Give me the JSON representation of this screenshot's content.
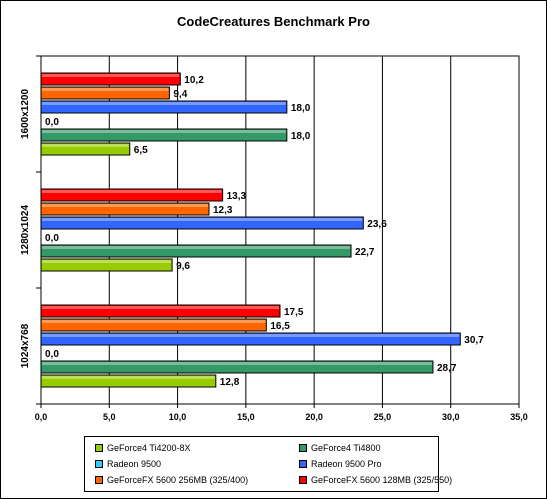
{
  "chart_data": {
    "type": "bar",
    "orientation": "horizontal",
    "title": "CodeCreatures Benchmark Pro",
    "categories": [
      "1600x1200",
      "1280x1024",
      "1024x768"
    ],
    "series": [
      {
        "name": "GeForce4 Ti4200-8X",
        "color": "#99cc00",
        "values": [
          6.5,
          9.6,
          12.8
        ],
        "labels": [
          "6,5",
          "9,6",
          "12,8"
        ]
      },
      {
        "name": "GeForce4 Ti4800",
        "color": "#339966",
        "values": [
          18.0,
          22.7,
          28.7
        ],
        "labels": [
          "18,0",
          "22,7",
          "28,7"
        ]
      },
      {
        "name": "Radeon 9500",
        "color": "#33ccff",
        "values": [
          0.0,
          0.0,
          0.0
        ],
        "labels": [
          "0,0",
          "0,0",
          "0,0"
        ]
      },
      {
        "name": "Radeon 9500 Pro",
        "color": "#3366ff",
        "values": [
          18.0,
          23.6,
          30.7
        ],
        "labels": [
          "18,0",
          "23,6",
          "30,7"
        ]
      },
      {
        "name": "GeForceFX 5600 256MB (325/400)",
        "color": "#ff6600",
        "values": [
          9.4,
          12.3,
          16.5
        ],
        "labels": [
          "9,4",
          "12,3",
          "16,5"
        ]
      },
      {
        "name": "GeForceFX 5600 128MB (325/550)",
        "color": "#ff0000",
        "values": [
          10.2,
          13.3,
          17.5
        ],
        "labels": [
          "10,2",
          "13,3",
          "17,5"
        ]
      }
    ],
    "xlim": [
      0,
      35
    ],
    "xticks": [
      0,
      5,
      10,
      15,
      20,
      25,
      30,
      35
    ],
    "xtick_labels": [
      "0,0",
      "5,0",
      "10,0",
      "15,0",
      "20,0",
      "25,0",
      "30,0",
      "35,0"
    ],
    "grid": true,
    "legend_position": "bottom"
  }
}
